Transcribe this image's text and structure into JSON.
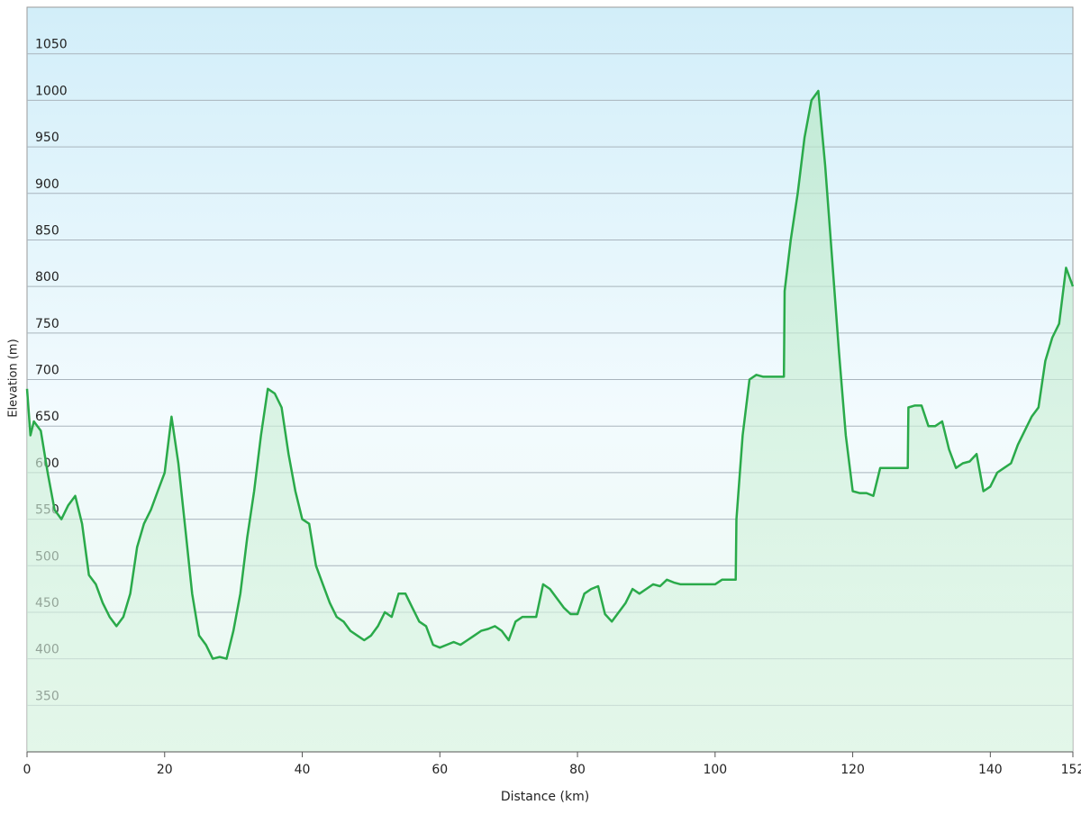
{
  "chart_data": {
    "type": "area",
    "xlabel": "Distance  (km)",
    "ylabel": "Elevation (m)",
    "color": "#2aaa4a",
    "x": [
      0,
      0.5,
      1,
      2,
      3,
      4,
      5,
      6,
      7,
      8,
      9,
      10,
      11,
      12,
      13,
      14,
      15,
      16,
      17,
      18,
      19,
      20,
      21,
      22,
      23,
      24,
      25,
      26,
      27,
      28,
      29,
      30,
      31,
      32,
      33,
      34,
      35,
      36,
      37,
      38,
      39,
      40,
      41,
      42,
      43,
      44,
      45,
      46,
      47,
      48,
      49,
      50,
      51,
      52,
      53,
      54,
      55,
      56,
      57,
      58,
      59,
      60,
      61,
      62,
      63,
      64,
      65,
      66,
      67,
      68,
      69,
      70,
      71,
      72,
      73,
      74,
      75,
      76,
      77,
      78,
      79,
      80,
      81,
      82,
      83,
      84,
      85,
      86,
      87,
      88,
      89,
      90,
      91,
      92,
      93,
      94,
      95,
      100,
      101,
      103,
      103.1,
      104,
      105,
      106,
      107,
      110,
      110.1,
      111,
      112,
      113,
      114,
      115,
      116,
      117,
      118,
      119,
      120,
      121,
      122,
      123,
      124,
      127,
      128,
      128.1,
      129,
      130,
      131,
      132,
      133,
      134,
      135,
      136,
      137,
      138,
      139,
      140,
      141,
      142,
      143,
      144,
      145,
      146,
      147,
      148,
      149,
      150,
      151,
      152
    ],
    "values": [
      690,
      640,
      655,
      645,
      600,
      560,
      550,
      565,
      575,
      545,
      490,
      480,
      460,
      445,
      435,
      445,
      470,
      520,
      545,
      560,
      580,
      600,
      660,
      610,
      540,
      470,
      425,
      415,
      400,
      402,
      400,
      430,
      470,
      530,
      580,
      640,
      690,
      685,
      670,
      620,
      580,
      550,
      545,
      500,
      480,
      460,
      445,
      440,
      430,
      425,
      420,
      425,
      435,
      450,
      445,
      470,
      470,
      455,
      440,
      435,
      415,
      412,
      415,
      418,
      415,
      420,
      425,
      430,
      432,
      435,
      430,
      420,
      440,
      445,
      445,
      445,
      480,
      475,
      465,
      455,
      448,
      448,
      470,
      475,
      478,
      448,
      440,
      450,
      460,
      475,
      470,
      475,
      480,
      478,
      485,
      482,
      480,
      480,
      485,
      485,
      550,
      640,
      700,
      705,
      703,
      703,
      795,
      850,
      900,
      960,
      1000,
      1010,
      930,
      830,
      730,
      640,
      580,
      578,
      578,
      575,
      605,
      605,
      605,
      670,
      672,
      672,
      650,
      650,
      655,
      625,
      605,
      610,
      612,
      620,
      580,
      585,
      600,
      605,
      610,
      630,
      645,
      660,
      670,
      720,
      745,
      760,
      820,
      800
    ],
    "xlim": [
      0,
      152
    ],
    "ylim": [
      300,
      1100
    ],
    "xticks": [
      0,
      20,
      40,
      60,
      80,
      100,
      120,
      140,
      152
    ],
    "yticks": [
      350,
      400,
      450,
      500,
      550,
      600,
      650,
      700,
      750,
      800,
      850,
      900,
      950,
      1000,
      1050
    ],
    "grid": true
  }
}
